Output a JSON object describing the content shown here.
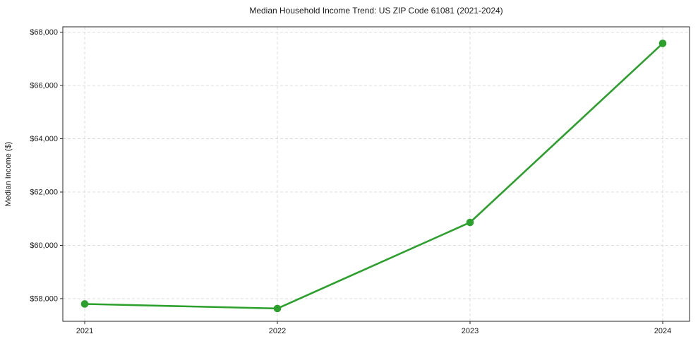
{
  "chart_data": {
    "type": "line",
    "title": "Median Household Income Trend: US ZIP Code 61081 (2021-2024)",
    "xlabel": "",
    "ylabel": "Median Income ($)",
    "categories": [
      "2021",
      "2022",
      "2023",
      "2024"
    ],
    "values": [
      57800,
      57630,
      60860,
      67580
    ],
    "ylim": [
      57150,
      68200
    ],
    "yticks": [
      58000,
      60000,
      62000,
      64000,
      66000,
      68000
    ],
    "ytick_labels": [
      "$58,000",
      "$60,000",
      "$62,000",
      "$64,000",
      "$66,000",
      "$68,000"
    ],
    "grid": true,
    "grid_style": "dashed",
    "legend": false,
    "line_color": "#2ca02c",
    "marker": "circle",
    "grid_color": "#d9d9d9",
    "axis_color": "#262626",
    "text_color": "#1a1a1a",
    "background": "#ffffff"
  }
}
